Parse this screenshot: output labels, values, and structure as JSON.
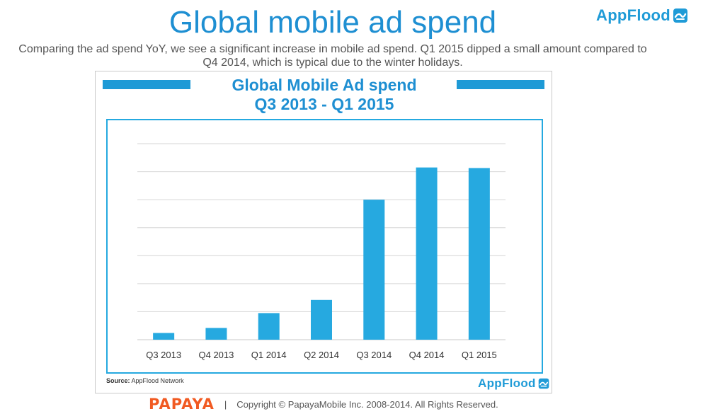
{
  "slide": {
    "title": "Global mobile ad spend",
    "subtitle": "Comparing the ad spend YoY, we see a significant increase in mobile ad spend. Q1 2015 dipped a small amount compared to Q4 2014, which is typical due to the winter holidays.",
    "brand": "AppFlood"
  },
  "chart_data": {
    "type": "bar",
    "title": "Global Mobile Ad spend",
    "subtitle": "Q3 2013 - Q1 2015",
    "categories": [
      "Q3 2013",
      "Q4 2013",
      "Q1 2014",
      "Q2 2014",
      "Q3 2014",
      "Q4 2014",
      "Q1 2015"
    ],
    "values": [
      0.24,
      0.42,
      0.95,
      1.42,
      5.0,
      6.15,
      6.13
    ],
    "ylim": [
      0,
      7
    ],
    "y_axis_labels_shown": false,
    "grid": true,
    "bar_color": "#26a9e0",
    "source_label": "Source:",
    "source_text": "AppFlood Network",
    "brand": "AppFlood"
  },
  "footer": {
    "company_logo": "PAPAYA",
    "separator": "|",
    "copyright": "Copyright © PapayaMobile Inc. 2008-2014. All Rights Reserved."
  },
  "colors": {
    "accent": "#1e8fd2",
    "bar": "#26a9e0",
    "papaya": "#f15a22"
  }
}
